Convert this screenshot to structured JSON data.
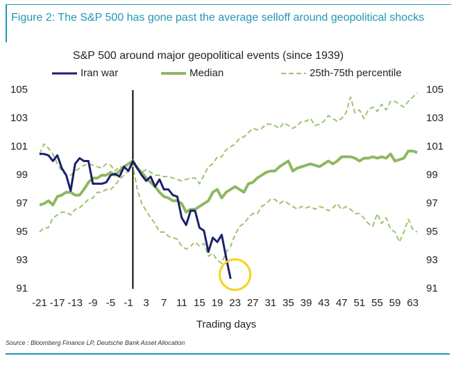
{
  "header": {
    "title": "Figure 2: The S&P 500 has gone past the average selloff around geopolitical shocks"
  },
  "chart_data": {
    "type": "line",
    "title": "S&P 500 around major geopolitical events (since 1939)",
    "x_label": "Trading days",
    "x": [
      -21,
      -20,
      -19,
      -18,
      -17,
      -16,
      -15,
      -14,
      -13,
      -12,
      -11,
      -10,
      -9,
      -8,
      -7,
      -6,
      -5,
      -4,
      -3,
      -2,
      -1,
      0,
      1,
      2,
      3,
      4,
      5,
      6,
      7,
      8,
      9,
      10,
      11,
      12,
      13,
      14,
      15,
      16,
      17,
      18,
      19,
      20,
      21,
      22,
      23,
      24,
      25,
      26,
      27,
      28,
      29,
      30,
      31,
      32,
      33,
      34,
      35,
      36,
      37,
      38,
      39,
      40,
      41,
      42,
      43,
      44,
      45,
      46,
      47,
      48,
      49,
      50,
      51,
      52,
      53,
      54,
      55,
      56,
      57,
      58,
      59,
      60,
      61,
      62,
      63,
      64
    ],
    "series": [
      {
        "name": "Iran war",
        "color": "#1b1f6b",
        "width": 3,
        "dashed": false,
        "values": [
          100.5,
          100.5,
          100.4,
          100.0,
          100.4,
          99.5,
          99.0,
          97.9,
          99.8,
          100.2,
          100.0,
          100.0,
          98.4,
          98.4,
          98.4,
          98.5,
          99.0,
          99.1,
          98.9,
          99.6,
          99.3,
          100.0,
          99.5,
          99.0,
          98.6,
          98.9,
          98.2,
          98.7,
          98.0,
          98.0,
          97.6,
          97.5,
          96.0,
          95.5,
          96.5,
          96.5,
          95.3,
          95.1,
          93.6,
          94.6,
          94.3,
          94.8,
          93.2,
          91.7,
          null,
          null,
          null,
          null,
          null,
          null,
          null,
          null,
          null,
          null,
          null,
          null,
          null,
          null,
          null,
          null,
          null,
          null,
          null,
          null,
          null,
          null,
          null,
          null,
          null,
          null,
          null,
          null,
          null,
          null,
          null,
          null,
          null,
          null,
          null,
          null,
          null,
          null,
          null,
          null,
          null,
          null
        ]
      },
      {
        "name": "Median",
        "color": "#8db860",
        "width": 4,
        "dashed": false,
        "values": [
          96.9,
          97.0,
          97.2,
          96.9,
          97.5,
          97.6,
          97.8,
          97.8,
          97.6,
          97.6,
          98.0,
          98.5,
          98.8,
          98.8,
          99.0,
          99.0,
          99.2,
          99.0,
          99.3,
          99.6,
          99.8,
          100.0,
          99.5,
          99.2,
          98.8,
          98.5,
          98.2,
          97.8,
          97.5,
          97.4,
          97.2,
          97.2,
          97.0,
          96.4,
          96.6,
          96.6,
          96.8,
          97.0,
          97.2,
          97.8,
          98.0,
          97.4,
          97.8,
          98.0,
          98.2,
          98.0,
          97.8,
          98.4,
          98.5,
          98.8,
          99.0,
          99.2,
          99.3,
          99.3,
          99.6,
          99.8,
          100.0,
          99.3,
          99.5,
          99.6,
          99.7,
          99.8,
          99.7,
          99.6,
          99.8,
          100.0,
          99.8,
          100.0,
          100.3,
          100.3,
          100.3,
          100.2,
          100.0,
          100.2,
          100.2,
          100.3,
          100.2,
          100.3,
          100.2,
          100.5,
          100.0,
          100.1,
          100.2,
          100.7,
          100.7,
          100.6
        ]
      },
      {
        "name": "25th-75th percentile",
        "color": "#9bc46d",
        "width": 2,
        "dashed": true,
        "upper": [
          100.5,
          101.2,
          100.9,
          100.5,
          99.8,
          99.3,
          99.0,
          99.0,
          99.3,
          99.5,
          99.7,
          99.8,
          99.7,
          99.6,
          99.5,
          99.8,
          99.7,
          99.3,
          99.6,
          99.5,
          99.8,
          100.0,
          99.6,
          99.2,
          99.4,
          99.2,
          99.0,
          99.0,
          98.9,
          98.9,
          98.8,
          98.7,
          98.6,
          98.7,
          98.8,
          98.8,
          98.4,
          99.0,
          99.6,
          99.8,
          100.3,
          100.3,
          100.8,
          101.0,
          101.2,
          101.6,
          101.7,
          102.0,
          102.3,
          102.2,
          102.3,
          102.6,
          102.6,
          102.5,
          102.3,
          102.7,
          102.5,
          102.3,
          102.5,
          102.8,
          102.8,
          103.0,
          102.5,
          102.6,
          102.8,
          103.2,
          103.0,
          102.8,
          103.0,
          103.4,
          104.5,
          103.4,
          103.6,
          103.0,
          103.6,
          103.8,
          103.5,
          104.0,
          103.6,
          104.2,
          104.2,
          104.0,
          103.8,
          104.2,
          104.5,
          104.8
        ],
        "lower": [
          95.0,
          95.3,
          95.3,
          96.0,
          96.2,
          96.4,
          96.4,
          96.2,
          96.6,
          96.7,
          97.0,
          97.3,
          97.4,
          97.8,
          97.8,
          98.0,
          98.0,
          98.3,
          98.7,
          99.0,
          99.3,
          99.7,
          98.0,
          97.0,
          96.5,
          96.0,
          95.6,
          95.0,
          95.0,
          94.7,
          94.6,
          94.5,
          94.0,
          93.8,
          94.0,
          94.3,
          94.0,
          94.2,
          93.3,
          93.5,
          93.0,
          92.8,
          93.6,
          94.0,
          94.8,
          95.4,
          95.6,
          96.0,
          96.3,
          96.3,
          96.8,
          97.0,
          97.3,
          97.3,
          97.0,
          97.2,
          97.0,
          96.8,
          96.6,
          96.8,
          96.7,
          96.8,
          96.6,
          96.8,
          96.7,
          96.5,
          96.7,
          97.0,
          96.6,
          96.8,
          96.6,
          96.3,
          96.3,
          96.0,
          95.6,
          95.4,
          96.3,
          95.6,
          96.0,
          95.2,
          95.0,
          94.3,
          95.0,
          95.9,
          95.2,
          95.0
        ]
      }
    ],
    "xlim": [
      -21,
      64
    ],
    "xticks": [
      -21,
      -17,
      -13,
      -9,
      -5,
      -1,
      3,
      7,
      11,
      15,
      19,
      23,
      27,
      31,
      35,
      39,
      43,
      47,
      51,
      55,
      59,
      63
    ],
    "ylim": [
      91,
      105
    ],
    "yticks": [
      91,
      93,
      95,
      97,
      99,
      101,
      103,
      105
    ],
    "mirror_y_axis": true,
    "grid": false,
    "reference_line": 0,
    "highlight": {
      "x": 23,
      "y": 92.0,
      "color": "#f5d31c"
    }
  },
  "source": "Source : Bloomberg Finance LP, Deutsche Bank Asset Allocation"
}
